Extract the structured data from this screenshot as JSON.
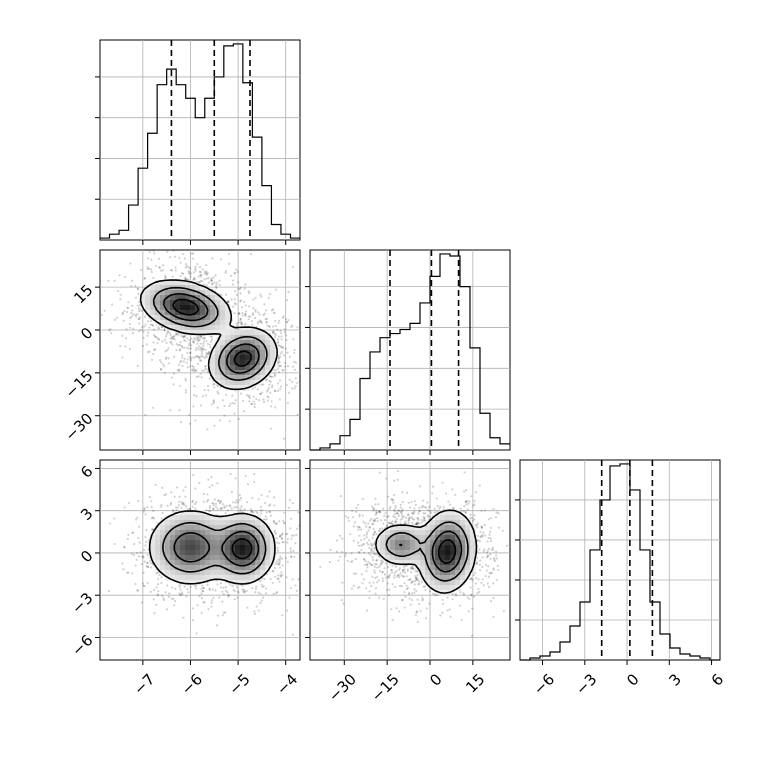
{
  "chart_data": {
    "type": "corner",
    "title": "",
    "grid": true,
    "parameters": [
      {
        "range": [
          -7.9,
          -3.7
        ],
        "ticks": [
          -7,
          -6,
          -5,
          -4
        ],
        "tick_labels": [
          "−7",
          "−6",
          "−5",
          "−4"
        ],
        "quantiles": [
          -6.4,
          -5.5,
          -4.75
        ],
        "histogram": {
          "bin_width": 0.2,
          "bin_start": -7.9,
          "counts": [
            1,
            3,
            5,
            18,
            37,
            55,
            80,
            88,
            80,
            73,
            63,
            73,
            84,
            100,
            101,
            81,
            53,
            28,
            8,
            3,
            1
          ]
        }
      },
      {
        "range": [
          -42,
          28
        ],
        "ticks": [
          -30,
          -15,
          0,
          15
        ],
        "tick_labels": [
          "−30",
          "−15",
          "0",
          "15"
        ],
        "quantiles": [
          -14,
          0.5,
          10
        ],
        "histogram": {
          "bin_width": 3.5,
          "bin_start": -42,
          "counts": [
            0,
            1,
            3,
            7,
            15,
            35,
            48,
            55,
            57,
            59,
            62,
            72,
            85,
            96,
            95,
            80,
            50,
            18,
            6,
            3
          ]
        }
      },
      {
        "range": [
          -7.6,
          6.6
        ],
        "ticks": [
          -6,
          -3,
          0,
          3,
          6
        ],
        "tick_labels": [
          "−6",
          "−3",
          "0",
          "3",
          "6"
        ],
        "quantiles": [
          -1.8,
          0.2,
          1.8
        ],
        "histogram": {
          "bin_width": 0.71,
          "bin_start": -7.6,
          "counts": [
            0,
            1,
            2,
            4,
            9,
            17,
            29,
            55,
            80,
            97,
            98,
            85,
            55,
            29,
            13,
            6,
            3,
            2,
            1,
            0
          ]
        }
      }
    ],
    "pairs": [
      {
        "x_param": 0,
        "y_param": 1,
        "modes": [
          {
            "mean": [
              -6.1,
              8
            ],
            "sd": [
              0.42,
              4.2
            ],
            "rho": -0.3,
            "weight": 1.0
          },
          {
            "mean": [
              -4.9,
              -10
            ],
            "sd": [
              0.32,
              4.8
            ],
            "rho": 0.2,
            "weight": 0.95
          }
        ],
        "scatter_sd": [
          0.75,
          11
        ]
      },
      {
        "x_param": 0,
        "y_param": 2,
        "modes": [
          {
            "mean": [
              -6.0,
              0.4
            ],
            "sd": [
              0.4,
              1.2
            ],
            "rho": 0.0,
            "weight": 0.8
          },
          {
            "mean": [
              -4.9,
              0.3
            ],
            "sd": [
              0.3,
              1.1
            ],
            "rho": 0.0,
            "weight": 1.0
          }
        ],
        "scatter_sd": [
          0.75,
          2.1
        ]
      },
      {
        "x_param": 1,
        "y_param": 2,
        "modes": [
          {
            "mean": [
              -10,
              0.6
            ],
            "sd": [
              4.5,
              0.7
            ],
            "rho": 0.0,
            "weight": 0.55
          },
          {
            "mean": [
              6,
              0.1
            ],
            "sd": [
              4.5,
              1.3
            ],
            "rho": 0.1,
            "weight": 1.0
          }
        ],
        "scatter_sd": [
          10,
          2.0
        ]
      }
    ],
    "contour_levels": [
      0.08,
      0.28,
      0.55,
      0.82
    ]
  }
}
